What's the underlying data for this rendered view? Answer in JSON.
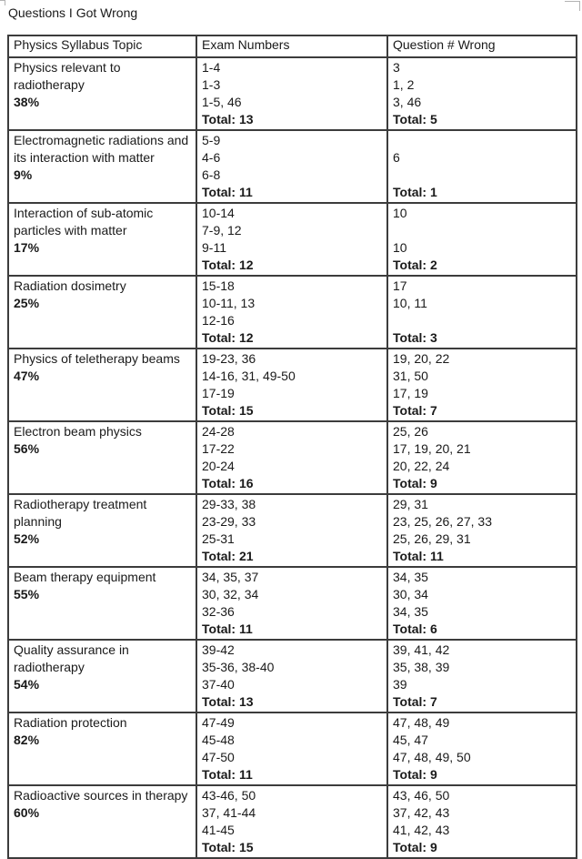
{
  "title": "Questions I Got Wrong",
  "colors": {
    "text": "#1a1a1a",
    "table_border": "#3c3c3c",
    "background": "#ffffff",
    "corner_mark": "#b3b3b3"
  },
  "table": {
    "headers": [
      "Physics Syllabus Topic",
      "Exam Numbers",
      "Question # Wrong"
    ],
    "rows": [
      {
        "topic": "Physics relevant to radiotherapy",
        "percent": "38%",
        "exam_numbers": [
          "1-4",
          "1-3",
          "1-5, 46"
        ],
        "exam_total": "Total: 13",
        "wrong": [
          "3",
          "1, 2",
          "3, 46"
        ],
        "wrong_total": "Total: 5"
      },
      {
        "topic": "Electromagnetic radiations and its interaction with matter",
        "percent": "9%",
        "exam_numbers": [
          "5-9",
          "4-6",
          "6-8"
        ],
        "exam_total": "Total: 11",
        "wrong": [
          "",
          "6",
          ""
        ],
        "wrong_total": "Total: 1"
      },
      {
        "topic": "Interaction of sub-atomic particles with matter",
        "percent": "17%",
        "exam_numbers": [
          "10-14",
          "7-9, 12",
          "9-11"
        ],
        "exam_total": "Total: 12",
        "wrong": [
          "10",
          "",
          "10"
        ],
        "wrong_total": "Total: 2"
      },
      {
        "topic": "Radiation dosimetry",
        "percent": "25%",
        "exam_numbers": [
          "15-18",
          "10-11, 13",
          "12-16"
        ],
        "exam_total": "Total: 12",
        "wrong": [
          "17",
          "10, 11",
          ""
        ],
        "wrong_total": "Total: 3"
      },
      {
        "topic": "Physics of teletherapy beams",
        "percent": "47%",
        "exam_numbers": [
          "19-23, 36",
          "14-16, 31, 49-50",
          "17-19"
        ],
        "exam_total": "Total: 15",
        "wrong": [
          "19, 20, 22",
          "31, 50",
          "17, 19"
        ],
        "wrong_total": "Total: 7"
      },
      {
        "topic": "Electron beam physics",
        "percent": "56%",
        "exam_numbers": [
          "24-28",
          "17-22",
          "20-24"
        ],
        "exam_total": "Total: 16",
        "wrong": [
          "25, 26",
          "17, 19, 20, 21",
          "20, 22, 24"
        ],
        "wrong_total": "Total: 9"
      },
      {
        "topic": "Radiotherapy treatment planning",
        "percent": "52%",
        "exam_numbers": [
          "29-33, 38",
          "23-29, 33",
          "25-31"
        ],
        "exam_total": "Total: 21",
        "wrong": [
          "29, 31",
          "23, 25, 26, 27, 33",
          "25, 26, 29, 31"
        ],
        "wrong_total": "Total: 11"
      },
      {
        "topic": "Beam therapy equipment",
        "percent": "55%",
        "exam_numbers": [
          "34, 35, 37",
          "30, 32, 34",
          "32-36"
        ],
        "exam_total": "Total: 11",
        "wrong": [
          "34, 35",
          "30, 34",
          "34, 35"
        ],
        "wrong_total": "Total: 6"
      },
      {
        "topic": "Quality assurance in radiotherapy",
        "percent": "54%",
        "exam_numbers": [
          "39-42",
          "35-36, 38-40",
          "37-40"
        ],
        "exam_total": "Total: 13",
        "wrong": [
          "39, 41, 42",
          "35, 38, 39",
          "39"
        ],
        "wrong_total": "Total: 7"
      },
      {
        "topic": "Radiation protection",
        "percent": "82%",
        "exam_numbers": [
          "47-49",
          "45-48",
          "47-50"
        ],
        "exam_total": "Total: 11",
        "wrong": [
          "47, 48, 49",
          "45, 47",
          "47, 48, 49, 50"
        ],
        "wrong_total": "Total: 9"
      },
      {
        "topic": "Radioactive sources in therapy",
        "percent": "60%",
        "exam_numbers": [
          "43-46, 50",
          "37, 41-44",
          "41-45"
        ],
        "exam_total": "Total: 15",
        "wrong": [
          "43, 46, 50",
          "37, 42, 43",
          "41, 42, 43"
        ],
        "wrong_total": "Total: 9"
      }
    ]
  }
}
